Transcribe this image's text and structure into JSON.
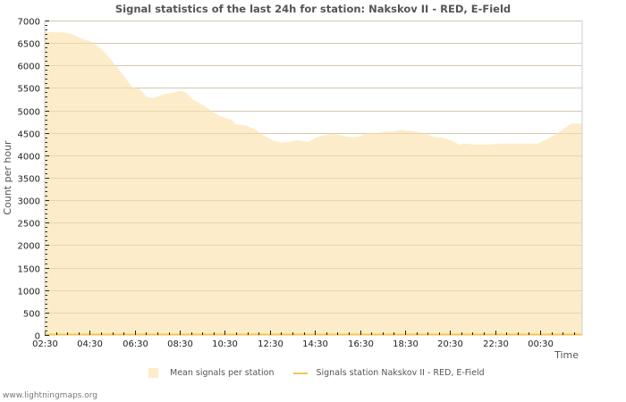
{
  "title": "Signal statistics of the last 24h for station: Nakskov II - RED, E-Field",
  "footer": "www.lightningmaps.org",
  "legend": {
    "area_label": "Mean signals per station",
    "line_label": "Signals station Nakskov II - RED, E-Field"
  },
  "colors": {
    "area_fill": "#fdecc9",
    "line": "#f6c64c",
    "grid": "#cccccc",
    "title": "#555555"
  },
  "chart_data": {
    "type": "area",
    "title": "Signal statistics of the last 24h for station: Nakskov II - RED, E-Field",
    "xlabel": "Time",
    "ylabel": "Count per hour",
    "ylim": [
      0,
      7000
    ],
    "yticks": [
      0,
      500,
      1000,
      1500,
      2000,
      2500,
      3000,
      3500,
      4000,
      4500,
      5000,
      5500,
      6000,
      6500,
      7000
    ],
    "xticks": [
      "02:30",
      "04:30",
      "06:30",
      "08:30",
      "10:30",
      "12:30",
      "14:30",
      "16:30",
      "18:30",
      "20:30",
      "22:30",
      "00:30"
    ],
    "grid": true,
    "legend_position": "bottom",
    "series": [
      {
        "name": "Mean signals per station",
        "kind": "area",
        "x_hours_from_0230": [
          0,
          0.8,
          1.2,
          1.6,
          2.0,
          2.4,
          2.8,
          3.2,
          3.6,
          3.9,
          4.2,
          4.5,
          4.8,
          5.2,
          5.6,
          6.0,
          6.3,
          6.6,
          7.0,
          7.4,
          7.8,
          8.3,
          8.5,
          8.9,
          9.3,
          9.7,
          10.1,
          10.5,
          10.9,
          11.2,
          11.7,
          12.1,
          12.5,
          12.8,
          13.1,
          13.5,
          13.9,
          14.3,
          14.7,
          15.1,
          15.5,
          15.8,
          16.1,
          16.5,
          16.9,
          17.3,
          17.7,
          18.1,
          18.4,
          18.7,
          19.1,
          19.7,
          20.3,
          21.1,
          21.9,
          22.3,
          22.7,
          23.1,
          23.4,
          23.9
        ],
        "values": [
          6740,
          6740,
          6700,
          6600,
          6540,
          6420,
          6220,
          5970,
          5710,
          5510,
          5490,
          5310,
          5270,
          5350,
          5390,
          5430,
          5390,
          5230,
          5130,
          4990,
          4870,
          4790,
          4690,
          4670,
          4590,
          4450,
          4340,
          4280,
          4300,
          4340,
          4300,
          4410,
          4450,
          4490,
          4450,
          4410,
          4410,
          4490,
          4490,
          4530,
          4530,
          4570,
          4550,
          4530,
          4490,
          4410,
          4390,
          4320,
          4240,
          4260,
          4240,
          4240,
          4260,
          4260,
          4260,
          4360,
          4470,
          4610,
          4710,
          4710
        ]
      },
      {
        "name": "Signals station Nakskov II - RED, E-Field",
        "kind": "line",
        "x_hours_from_0230": [
          0,
          23.9
        ],
        "values": [
          0,
          0
        ]
      }
    ]
  }
}
